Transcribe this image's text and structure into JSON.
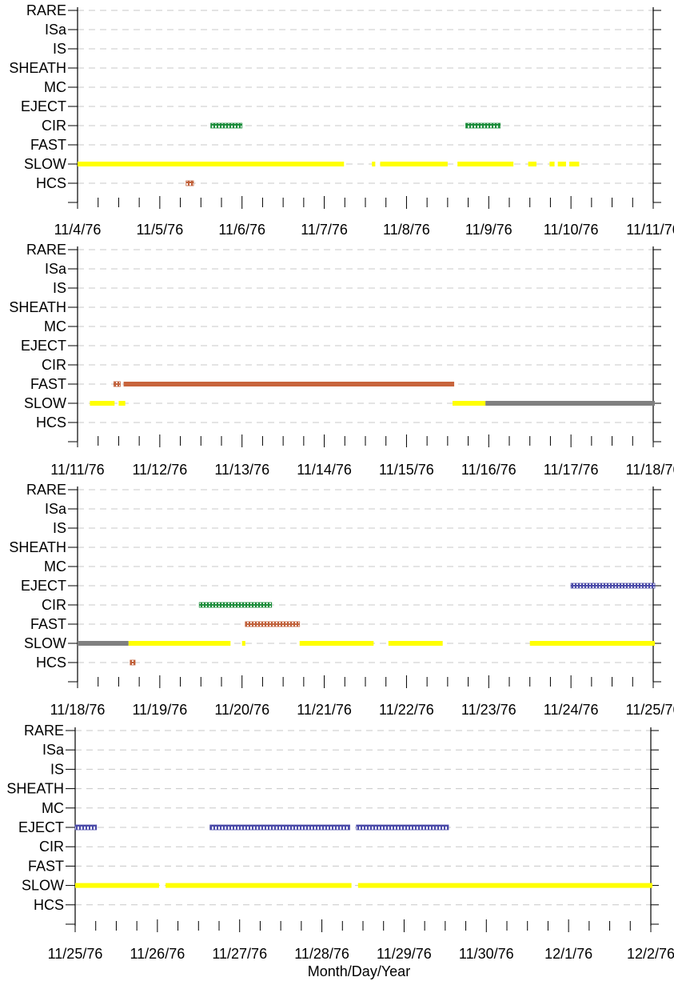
{
  "chart_data": [
    {
      "type": "timeline",
      "categories": [
        "RARE",
        "ISa",
        "IS",
        "SHEATH",
        "MC",
        "EJECT",
        "CIR",
        "FAST",
        "SLOW",
        "HCS"
      ],
      "x_ticks": [
        "11/4/76",
        "11/5/76",
        "11/6/76",
        "11/7/76",
        "11/8/76",
        "11/9/76",
        "11/10/76",
        "11/11/76"
      ],
      "xlim": [
        0,
        7
      ],
      "series": [
        {
          "category": "CIR",
          "style": "hatch",
          "color": "#1a8c3a",
          "intervals": [
            [
              1.62,
              2.0
            ],
            [
              4.72,
              5.14
            ]
          ]
        },
        {
          "category": "SLOW",
          "style": "solid",
          "color": "#ffff00",
          "intervals": [
            [
              0,
              3.24
            ],
            [
              3.58,
              3.62
            ],
            [
              3.68,
              4.5
            ],
            [
              4.62,
              5.3
            ],
            [
              5.48,
              5.58
            ],
            [
              5.74,
              5.8
            ],
            [
              5.84,
              5.94
            ],
            [
              5.98,
              6.1
            ]
          ]
        },
        {
          "category": "HCS",
          "style": "hatch",
          "color": "#c0603a",
          "intervals": [
            [
              1.32,
              1.41
            ]
          ]
        }
      ]
    },
    {
      "type": "timeline",
      "categories": [
        "RARE",
        "ISa",
        "IS",
        "SHEATH",
        "MC",
        "EJECT",
        "CIR",
        "FAST",
        "SLOW",
        "HCS"
      ],
      "x_ticks": [
        "11/11/76",
        "11/12/76",
        "11/13/76",
        "11/14/76",
        "11/15/76",
        "11/16/76",
        "11/17/76",
        "11/18/76"
      ],
      "xlim": [
        0,
        7
      ],
      "series": [
        {
          "category": "FAST",
          "style": "hatch",
          "color": "#c0603a",
          "intervals": [
            [
              0.44,
              0.52
            ]
          ]
        },
        {
          "category": "FAST",
          "style": "solid",
          "color": "#c8643c",
          "intervals": [
            [
              0.56,
              4.58
            ]
          ]
        },
        {
          "category": "SLOW",
          "style": "solid",
          "color": "#ffff00",
          "intervals": [
            [
              0.15,
              0.45
            ],
            [
              0.5,
              0.58
            ],
            [
              4.56,
              4.96
            ]
          ]
        },
        {
          "category": "SLOW",
          "style": "solid",
          "color": "#808080",
          "intervals": [
            [
              4.96,
              7.2
            ]
          ]
        }
      ]
    },
    {
      "type": "timeline",
      "categories": [
        "RARE",
        "ISa",
        "IS",
        "SHEATH",
        "MC",
        "EJECT",
        "CIR",
        "FAST",
        "SLOW",
        "HCS"
      ],
      "x_ticks": [
        "11/18/76",
        "11/19/76",
        "11/20/76",
        "11/21/76",
        "11/22/76",
        "11/23/76",
        "11/24/76",
        "11/25/76"
      ],
      "xlim": [
        0,
        7
      ],
      "series": [
        {
          "category": "EJECT",
          "style": "hatch",
          "color": "#4a4aa8",
          "intervals": [
            [
              6.0,
              7.15
            ]
          ]
        },
        {
          "category": "CIR",
          "style": "hatch",
          "color": "#1a8c3a",
          "intervals": [
            [
              1.48,
              2.36
            ]
          ]
        },
        {
          "category": "FAST",
          "style": "hatch",
          "color": "#c0603a",
          "intervals": [
            [
              2.04,
              2.7
            ]
          ]
        },
        {
          "category": "SLOW",
          "style": "solid",
          "color": "#808080",
          "intervals": [
            [
              0,
              0.62
            ]
          ]
        },
        {
          "category": "SLOW",
          "style": "solid",
          "color": "#ffff00",
          "intervals": [
            [
              0.62,
              1.86
            ],
            [
              2.0,
              2.04
            ],
            [
              2.7,
              3.6
            ],
            [
              3.78,
              4.44
            ],
            [
              5.5,
              7.15
            ]
          ]
        },
        {
          "category": "HCS",
          "style": "hatch",
          "color": "#c0603a",
          "intervals": [
            [
              0.64,
              0.7
            ]
          ]
        }
      ]
    },
    {
      "type": "timeline",
      "categories": [
        "RARE",
        "ISa",
        "IS",
        "SHEATH",
        "MC",
        "EJECT",
        "CIR",
        "FAST",
        "SLOW",
        "HCS"
      ],
      "x_ticks": [
        "11/25/76",
        "11/26/76",
        "11/27/76",
        "11/28/76",
        "11/29/76",
        "11/30/76",
        "12/1/76",
        "12/2/76"
      ],
      "xlim": [
        0,
        7
      ],
      "xlabel": "Month/Day/Year",
      "series": [
        {
          "category": "EJECT",
          "style": "hatch",
          "color": "#4a4aa8",
          "intervals": [
            [
              0,
              0.26
            ],
            [
              1.64,
              3.34
            ],
            [
              3.42,
              4.54
            ]
          ]
        },
        {
          "category": "SLOW",
          "style": "solid",
          "color": "#ffff00",
          "intervals": [
            [
              0,
              1.02
            ],
            [
              1.1,
              3.36
            ],
            [
              3.44,
              7.2
            ]
          ]
        }
      ]
    }
  ]
}
